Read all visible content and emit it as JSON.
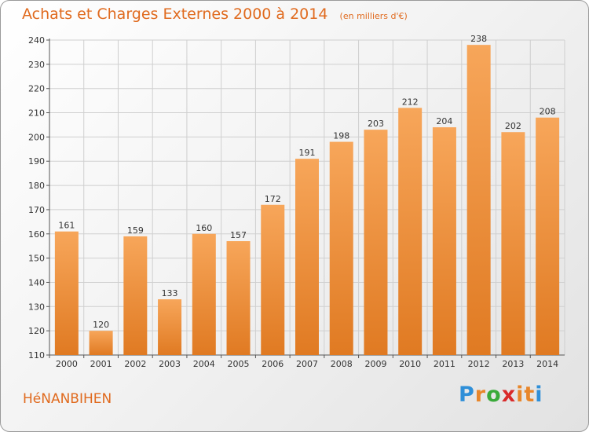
{
  "title": "Achats et Charges Externes 2000 à 2014",
  "unit_note": "(en milliers d'€)",
  "commune": "HéNANBIHEN",
  "logo": {
    "text": "Proxiti",
    "letters": [
      "P",
      "r",
      "o",
      "x",
      "i",
      "t",
      "i"
    ],
    "colors": [
      "#2f8fd8",
      "#e8862a",
      "#3aaa3a",
      "#d92a2a",
      "#e8862a",
      "#e8862a",
      "#2f8fd8"
    ]
  },
  "colors": {
    "accent": "#e06a1e",
    "bar_top": "#f7a65a",
    "bar_bottom": "#e07a22",
    "grid": "#cfcfcf"
  },
  "chart_data": {
    "type": "bar",
    "title": "Achats et Charges Externes 2000 à 2014",
    "subtitle": "(en milliers d'€)",
    "categories": [
      "2000",
      "2001",
      "2002",
      "2003",
      "2004",
      "2005",
      "2006",
      "2007",
      "2008",
      "2009",
      "2010",
      "2011",
      "2012",
      "2013",
      "2014"
    ],
    "values": [
      161,
      120,
      159,
      133,
      160,
      157,
      172,
      191,
      198,
      203,
      212,
      204,
      238,
      202,
      208
    ],
    "ylim": [
      110,
      240
    ],
    "yticks": [
      110,
      120,
      130,
      140,
      150,
      160,
      170,
      180,
      190,
      200,
      210,
      220,
      230,
      240
    ],
    "grid": true,
    "data_labels": true
  }
}
